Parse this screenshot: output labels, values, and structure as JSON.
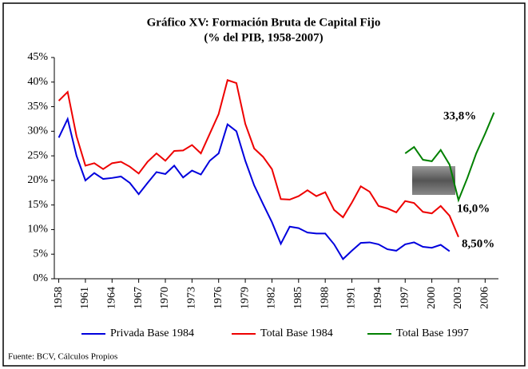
{
  "chart_data": {
    "type": "line",
    "title": "Gráfico XV: Formación Bruta de Capital Fijo",
    "subtitle": "(% del PIB, 1958-2007)",
    "source": "Fuente: BCV, Cálculos Propios",
    "x": [
      1958,
      1959,
      1960,
      1961,
      1962,
      1963,
      1964,
      1965,
      1966,
      1967,
      1968,
      1969,
      1970,
      1971,
      1972,
      1973,
      1974,
      1975,
      1976,
      1977,
      1978,
      1979,
      1980,
      1981,
      1982,
      1983,
      1984,
      1985,
      1986,
      1987,
      1988,
      1989,
      1990,
      1991,
      1992,
      1993,
      1994,
      1995,
      1996,
      1997,
      1998,
      1999,
      2000,
      2001,
      2002,
      2003,
      2004,
      2005,
      2006,
      2007
    ],
    "xlim": [
      1957.5,
      2007.5
    ],
    "xticks": [
      1958,
      1961,
      1964,
      1967,
      1970,
      1973,
      1976,
      1979,
      1982,
      1985,
      1988,
      1991,
      1994,
      1997,
      2000,
      2003,
      2006
    ],
    "ylim": [
      0,
      45
    ],
    "yticks": [
      {
        "value": 0,
        "label": "0%"
      },
      {
        "value": 5,
        "label": "5%"
      },
      {
        "value": 10,
        "label": "10%"
      },
      {
        "value": 15,
        "label": "15%"
      },
      {
        "value": 20,
        "label": "20%"
      },
      {
        "value": 25,
        "label": "25%"
      },
      {
        "value": 30,
        "label": "30%"
      },
      {
        "value": 35,
        "label": "35%"
      },
      {
        "value": 40,
        "label": "40%"
      },
      {
        "value": 45,
        "label": "45%"
      }
    ],
    "grid": false,
    "legend": "bottom",
    "series": [
      {
        "name": "Privada Base 1984",
        "color": "#0000dd",
        "values": [
          28.7,
          32.5,
          25,
          20,
          21.5,
          20.3,
          20.5,
          20.8,
          19.5,
          17.2,
          19.5,
          21.7,
          21.3,
          23,
          20.6,
          22,
          21.2,
          24,
          25.5,
          31.4,
          30,
          24,
          19,
          15.2,
          11.5,
          7.1,
          10.6,
          10.3,
          9.4,
          9.2,
          9.2,
          7,
          4,
          5.7,
          7.3,
          7.4,
          7,
          6,
          5.7,
          7,
          7.4,
          6.5,
          6.3,
          6.9,
          5.6,
          null,
          null,
          null,
          null,
          null
        ]
      },
      {
        "name": "Total Base 1984",
        "color": "#ee0000",
        "values": [
          36.2,
          38,
          29,
          23,
          23.5,
          22.3,
          23.5,
          23.8,
          22.8,
          21.4,
          23.8,
          25.5,
          24,
          26,
          26.1,
          27.2,
          25.5,
          29.5,
          33.5,
          40.4,
          39.8,
          31.5,
          26.5,
          24.8,
          22.3,
          16.2,
          16.1,
          16.8,
          18,
          16.8,
          17.6,
          14,
          12.5,
          15.5,
          18.8,
          17.7,
          14.8,
          14.3,
          13.5,
          15.8,
          15.4,
          13.6,
          13.3,
          14.8,
          12.8,
          8.5,
          null,
          null,
          null,
          null
        ]
      },
      {
        "name": "Total Base 1997",
        "color": "#008000",
        "values": [
          null,
          null,
          null,
          null,
          null,
          null,
          null,
          null,
          null,
          null,
          null,
          null,
          null,
          null,
          null,
          null,
          null,
          null,
          null,
          null,
          null,
          null,
          null,
          null,
          null,
          null,
          null,
          null,
          null,
          null,
          null,
          null,
          null,
          null,
          null,
          null,
          null,
          null,
          null,
          25.5,
          26.8,
          24.2,
          23.9,
          26.2,
          23.2,
          16,
          20.5,
          25.5,
          29.5,
          33.8
        ]
      }
    ],
    "annotations": [
      {
        "text": "33,8%",
        "color": "#008000"
      },
      {
        "text": "16,0%",
        "color": "#008000"
      },
      {
        "text": "8,50%",
        "color": "#ee0000"
      }
    ]
  }
}
